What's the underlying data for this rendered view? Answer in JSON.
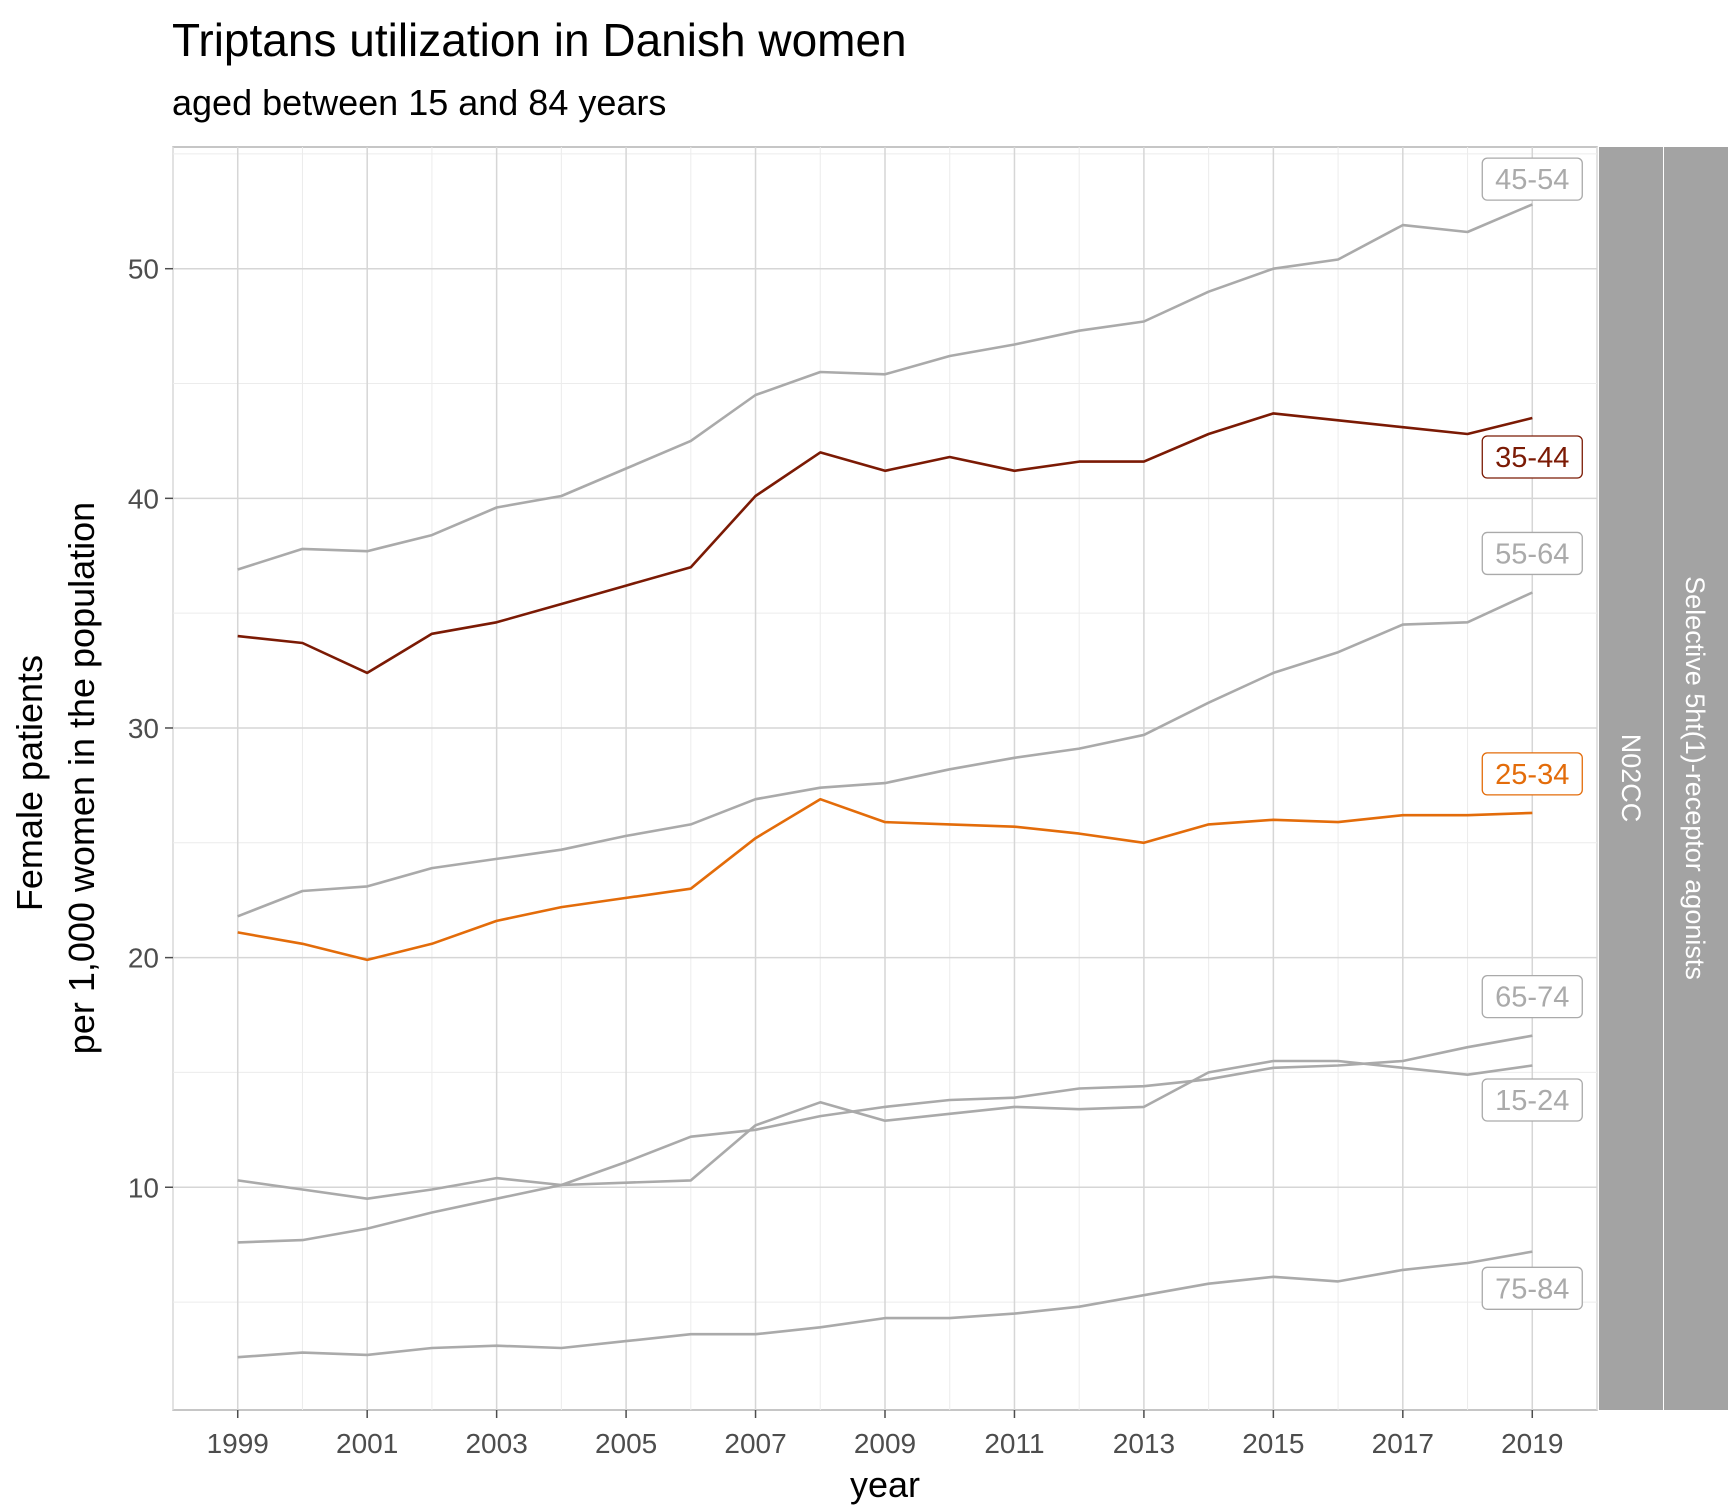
{
  "chart_data": {
    "type": "line",
    "title": "Triptans utilization in Danish women",
    "subtitle": "aged between 15 and 84 years",
    "xlabel": "year",
    "ylabel_lines": [
      "Female patients",
      "per 1,000 women in the population"
    ],
    "xlim": [
      1998,
      2020
    ],
    "ylim": [
      0.3,
      55.3
    ],
    "x_ticks": [
      1999,
      2001,
      2003,
      2005,
      2007,
      2009,
      2011,
      2013,
      2015,
      2017,
      2019
    ],
    "y_ticks": [
      10,
      20,
      30,
      40,
      50
    ],
    "grid": true,
    "facet_strips": [
      "N02CC",
      "Selective 5ht(1)-receptor agonists"
    ],
    "x": [
      1999,
      2000,
      2001,
      2002,
      2003,
      2004,
      2005,
      2006,
      2007,
      2008,
      2009,
      2010,
      2011,
      2012,
      2013,
      2014,
      2015,
      2016,
      2017,
      2018,
      2019
    ],
    "series": [
      {
        "name": "45-54",
        "color": "#aaaaaa",
        "label_value": 53.9,
        "values": [
          36.9,
          37.8,
          37.7,
          38.4,
          39.6,
          40.1,
          41.3,
          42.5,
          44.5,
          45.5,
          45.4,
          46.2,
          46.7,
          47.3,
          47.7,
          49.0,
          50.0,
          50.4,
          51.9,
          51.6,
          52.8
        ]
      },
      {
        "name": "55-64",
        "color": "#aaaaaa",
        "label_value": 37.6,
        "values": [
          21.8,
          22.9,
          23.1,
          23.9,
          24.3,
          24.7,
          25.3,
          25.8,
          26.9,
          27.4,
          27.6,
          28.2,
          28.7,
          29.1,
          29.7,
          31.1,
          32.4,
          33.3,
          34.5,
          34.6,
          35.9
        ]
      },
      {
        "name": "65-74",
        "color": "#aaaaaa",
        "label_value": 18.3,
        "values": [
          7.6,
          7.7,
          8.2,
          8.9,
          9.5,
          10.1,
          11.1,
          12.2,
          12.5,
          13.1,
          13.5,
          13.8,
          13.9,
          14.3,
          14.4,
          14.7,
          15.2,
          15.3,
          15.5,
          16.1,
          16.6
        ]
      },
      {
        "name": "15-24",
        "color": "#aaaaaa",
        "label_value": 13.8,
        "values": [
          10.3,
          9.9,
          9.5,
          9.9,
          10.4,
          10.1,
          10.2,
          10.3,
          12.7,
          13.7,
          12.9,
          13.2,
          13.5,
          13.4,
          13.5,
          15.0,
          15.5,
          15.5,
          15.2,
          14.9,
          15.3
        ]
      },
      {
        "name": "75-84",
        "color": "#aaaaaa",
        "label_value": 5.6,
        "values": [
          2.6,
          2.8,
          2.7,
          3.0,
          3.1,
          3.0,
          3.3,
          3.6,
          3.6,
          3.9,
          4.3,
          4.3,
          4.5,
          4.8,
          5.3,
          5.8,
          6.1,
          5.9,
          6.4,
          6.7,
          7.2
        ]
      },
      {
        "name": "25-34",
        "color": "#e36c0a",
        "label_value": 28.0,
        "values": [
          21.1,
          20.6,
          19.9,
          20.6,
          21.6,
          22.2,
          22.6,
          23.0,
          25.2,
          26.9,
          25.9,
          25.8,
          25.7,
          25.4,
          25.0,
          25.8,
          26.0,
          25.9,
          26.2,
          26.2,
          26.3
        ]
      },
      {
        "name": "35-44",
        "color": "#7b1a04",
        "label_value": 41.8,
        "values": [
          34.0,
          33.7,
          32.4,
          34.1,
          34.6,
          35.4,
          36.2,
          37.0,
          40.1,
          42.0,
          41.2,
          41.8,
          41.2,
          41.6,
          41.6,
          42.8,
          43.7,
          43.4,
          43.1,
          42.8,
          43.5
        ]
      }
    ]
  }
}
